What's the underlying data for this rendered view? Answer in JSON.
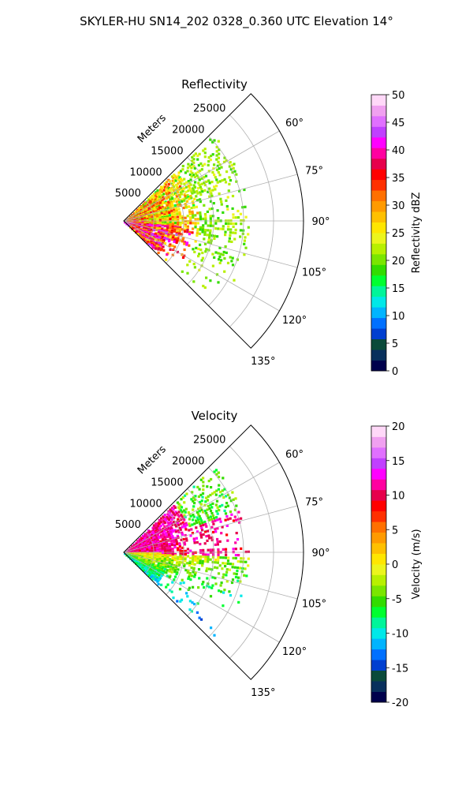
{
  "suptitle": "SKYLER-HU  SN14_202  0328_0.360 UTC Elevation 14°",
  "chart_data": [
    {
      "type": "heatmap",
      "subtype": "polar-sector",
      "title": "Reflectivity",
      "radial_label": "Meters",
      "radial_ticks": [
        "5000",
        "10000",
        "15000",
        "20000",
        "25000"
      ],
      "radial_tick_values": [
        5000,
        10000,
        15000,
        20000,
        25000
      ],
      "r_max": 30000,
      "theta_range_deg": [
        45,
        135
      ],
      "angle_ticks": [
        "60°",
        "75°",
        "90°",
        "105°",
        "120°",
        "135°"
      ],
      "angle_tick_values": [
        60,
        75,
        90,
        105,
        120,
        135
      ],
      "colorbar": {
        "label": "Reflectivity dBZ",
        "min": 0,
        "max": 50,
        "ticks": [
          "0",
          "5",
          "10",
          "15",
          "20",
          "25",
          "30",
          "35",
          "40",
          "45",
          "50"
        ],
        "colors": [
          "#00004c",
          "#08305c",
          "#0a4a3a",
          "#003fd0",
          "#0070ff",
          "#00b4ff",
          "#00e8e8",
          "#00f59a",
          "#00ff30",
          "#32dc00",
          "#7ae600",
          "#b8f000",
          "#ecf51c",
          "#ffe600",
          "#ffc000",
          "#ff9a00",
          "#ff7000",
          "#ff3000",
          "#ff0000",
          "#e6004c",
          "#ff00a0",
          "#ff00ff",
          "#c040ff",
          "#e070ff",
          "#f0a0f0",
          "#ffd8f8"
        ]
      },
      "data_extent_km": 21,
      "grid": true
    },
    {
      "type": "heatmap",
      "subtype": "polar-sector",
      "title": "Velocity",
      "radial_label": "Meters",
      "radial_ticks": [
        "5000",
        "10000",
        "15000",
        "20000",
        "25000"
      ],
      "radial_tick_values": [
        5000,
        10000,
        15000,
        20000,
        25000
      ],
      "r_max": 30000,
      "theta_range_deg": [
        45,
        135
      ],
      "angle_ticks": [
        "60°",
        "75°",
        "90°",
        "105°",
        "120°",
        "135°"
      ],
      "angle_tick_values": [
        60,
        75,
        90,
        105,
        120,
        135
      ],
      "colorbar": {
        "label": "Velocity (m/s)",
        "min": -20,
        "max": 20,
        "ticks": [
          "-20",
          "-15",
          "-10",
          "-5",
          "0",
          "5",
          "10",
          "15",
          "20"
        ],
        "colors": [
          "#00004c",
          "#08305c",
          "#0a4a3a",
          "#003fd0",
          "#0070ff",
          "#00b4ff",
          "#00e8e8",
          "#00f59a",
          "#00ff30",
          "#32dc00",
          "#7ae600",
          "#b8f000",
          "#ecf51c",
          "#ffe600",
          "#ffc000",
          "#ff9a00",
          "#ff7000",
          "#ff3000",
          "#ff0000",
          "#e6004c",
          "#ff00a0",
          "#ff00ff",
          "#c040ff",
          "#e070ff",
          "#f0a0f0",
          "#ffd8f8"
        ]
      },
      "data_extent_km": 21,
      "grid": true
    }
  ]
}
